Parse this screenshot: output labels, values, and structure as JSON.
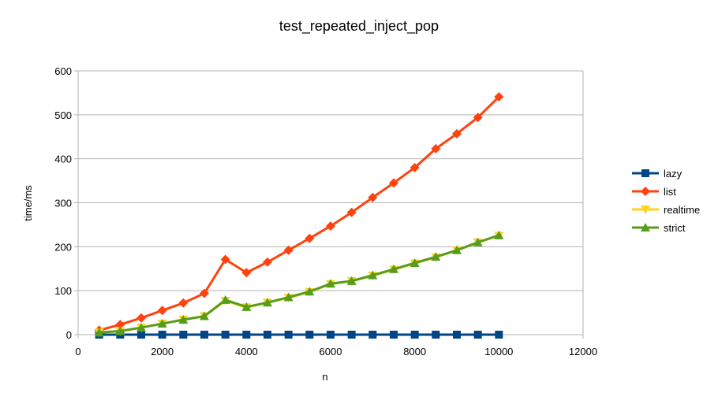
{
  "chart_data": {
    "type": "line",
    "title": "test_repeated_inject_pop",
    "xlabel": "n",
    "ylabel": "time/ms",
    "xlim": [
      0,
      12000
    ],
    "ylim": [
      0,
      600
    ],
    "xticks": [
      0,
      2000,
      4000,
      6000,
      8000,
      10000,
      12000
    ],
    "yticks": [
      0,
      100,
      200,
      300,
      400,
      500,
      600
    ],
    "grid": "horizontal",
    "legend_position": "right",
    "x": [
      500,
      1000,
      1500,
      2000,
      2500,
      3000,
      3500,
      4000,
      4500,
      5000,
      5500,
      6000,
      6500,
      7000,
      7500,
      8000,
      8500,
      9000,
      9500,
      10000
    ],
    "series": [
      {
        "name": "lazy",
        "color": "#004586",
        "marker": "square",
        "values": [
          0,
          0,
          0,
          0,
          0,
          0,
          0,
          0,
          0,
          0,
          0,
          0,
          0,
          0,
          0,
          0,
          0,
          0,
          0,
          0
        ]
      },
      {
        "name": "list",
        "color": "#ff420e",
        "marker": "diamond",
        "values": [
          10,
          23,
          38,
          55,
          72,
          94,
          171,
          141,
          165,
          192,
          219,
          247,
          278,
          312,
          345,
          380,
          423,
          457,
          494,
          541
        ]
      },
      {
        "name": "realtime",
        "color": "#ffd320",
        "marker": "triangle-down",
        "values": [
          5,
          8,
          16,
          25,
          34,
          42,
          77,
          62,
          73,
          84,
          97,
          115,
          122,
          134,
          148,
          162,
          176,
          192,
          210,
          225
        ]
      },
      {
        "name": "strict",
        "color": "#579d1c",
        "marker": "triangle-up",
        "values": [
          5,
          8,
          16,
          25,
          34,
          42,
          79,
          63,
          73,
          85,
          98,
          116,
          122,
          135,
          149,
          163,
          177,
          192,
          210,
          226
        ]
      }
    ]
  }
}
